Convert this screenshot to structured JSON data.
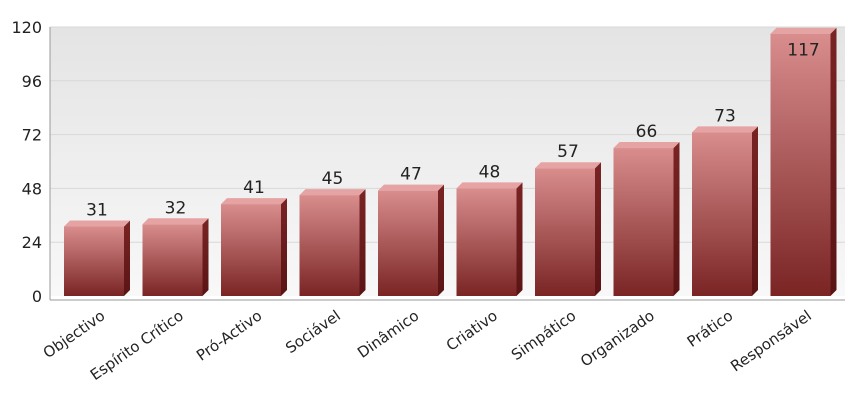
{
  "chart_data": {
    "type": "bar",
    "title": "",
    "xlabel": "",
    "ylabel": "",
    "categories": [
      "Objectivo",
      "Espírito Crítico",
      "Pró-Activo",
      "Sociável",
      "Dinâmico",
      "Criativo",
      "Simpático",
      "Organizado",
      "Prático",
      "Responsável"
    ],
    "values": [
      31,
      32,
      41,
      45,
      47,
      48,
      57,
      66,
      73,
      117
    ],
    "ylim": [
      0,
      120
    ],
    "yticks": [
      0,
      24,
      48,
      72,
      96,
      120
    ],
    "grid": true,
    "legend": "none",
    "colors": {
      "bar_top": "#d98d8d",
      "bar_bottom": "#7a2424",
      "bar_side": "#5a1414",
      "bar_cap": "#e6a3a3",
      "plot_bg_top": "#e4e4e4",
      "plot_bg_bottom": "#f8f8f8"
    }
  }
}
